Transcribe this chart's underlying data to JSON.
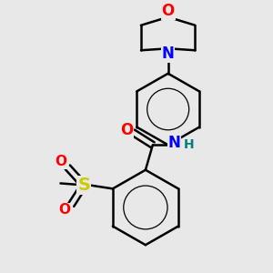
{
  "background_color": "#e8e8e8",
  "bond_color": "#000000",
  "bond_width": 1.8,
  "figsize": [
    3.0,
    3.0
  ],
  "dpi": 100,
  "colors": {
    "O": "#ff0000",
    "N": "#0000ff",
    "S": "#cccc00",
    "H": "#008080",
    "C": "#000000"
  }
}
